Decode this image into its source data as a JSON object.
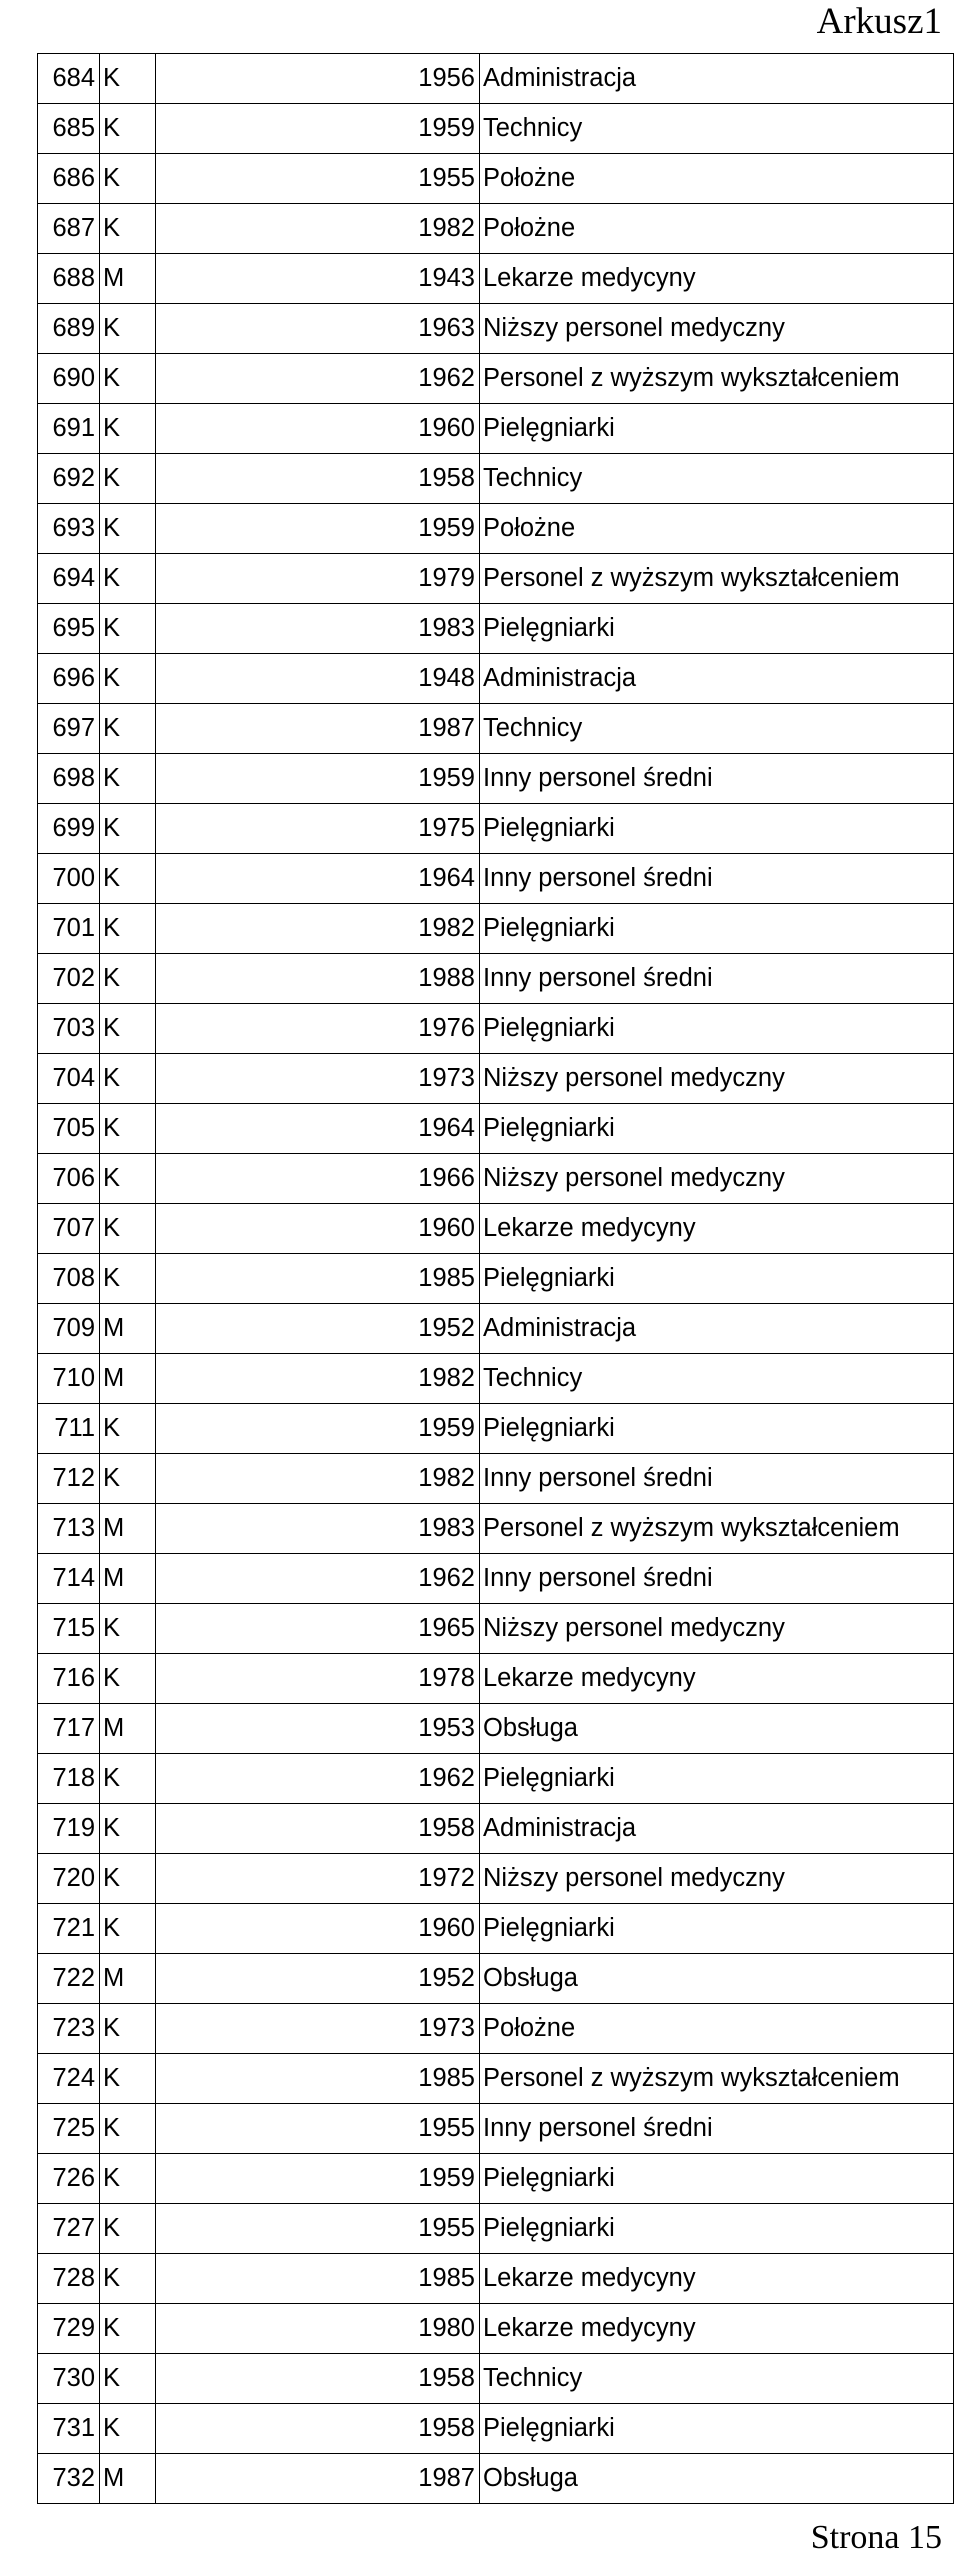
{
  "header": {
    "sheet_name": "Arkusz1"
  },
  "table": {
    "rows": [
      {
        "id": "684",
        "sex": "K",
        "year": "1956",
        "group": "Administracja"
      },
      {
        "id": "685",
        "sex": "K",
        "year": "1959",
        "group": "Technicy"
      },
      {
        "id": "686",
        "sex": "K",
        "year": "1955",
        "group": "Położne"
      },
      {
        "id": "687",
        "sex": "K",
        "year": "1982",
        "group": "Położne"
      },
      {
        "id": "688",
        "sex": "M",
        "year": "1943",
        "group": "Lekarze medycyny"
      },
      {
        "id": "689",
        "sex": "K",
        "year": "1963",
        "group": "Niższy personel medyczny"
      },
      {
        "id": "690",
        "sex": "K",
        "year": "1962",
        "group": "Personel z wyższym wykształceniem"
      },
      {
        "id": "691",
        "sex": "K",
        "year": "1960",
        "group": "Pielęgniarki"
      },
      {
        "id": "692",
        "sex": "K",
        "year": "1958",
        "group": "Technicy"
      },
      {
        "id": "693",
        "sex": "K",
        "year": "1959",
        "group": "Położne"
      },
      {
        "id": "694",
        "sex": "K",
        "year": "1979",
        "group": "Personel z wyższym wykształceniem"
      },
      {
        "id": "695",
        "sex": "K",
        "year": "1983",
        "group": "Pielęgniarki"
      },
      {
        "id": "696",
        "sex": "K",
        "year": "1948",
        "group": "Administracja"
      },
      {
        "id": "697",
        "sex": "K",
        "year": "1987",
        "group": "Technicy"
      },
      {
        "id": "698",
        "sex": "K",
        "year": "1959",
        "group": "Inny personel średni"
      },
      {
        "id": "699",
        "sex": "K",
        "year": "1975",
        "group": "Pielęgniarki"
      },
      {
        "id": "700",
        "sex": "K",
        "year": "1964",
        "group": "Inny personel średni"
      },
      {
        "id": "701",
        "sex": "K",
        "year": "1982",
        "group": "Pielęgniarki"
      },
      {
        "id": "702",
        "sex": "K",
        "year": "1988",
        "group": "Inny personel średni"
      },
      {
        "id": "703",
        "sex": "K",
        "year": "1976",
        "group": "Pielęgniarki"
      },
      {
        "id": "704",
        "sex": "K",
        "year": "1973",
        "group": "Niższy personel medyczny"
      },
      {
        "id": "705",
        "sex": "K",
        "year": "1964",
        "group": "Pielęgniarki"
      },
      {
        "id": "706",
        "sex": "K",
        "year": "1966",
        "group": "Niższy personel medyczny"
      },
      {
        "id": "707",
        "sex": "K",
        "year": "1960",
        "group": "Lekarze medycyny"
      },
      {
        "id": "708",
        "sex": "K",
        "year": "1985",
        "group": "Pielęgniarki"
      },
      {
        "id": "709",
        "sex": "M",
        "year": "1952",
        "group": "Administracja"
      },
      {
        "id": "710",
        "sex": "M",
        "year": "1982",
        "group": "Technicy"
      },
      {
        "id": "711",
        "sex": "K",
        "year": "1959",
        "group": "Pielęgniarki"
      },
      {
        "id": "712",
        "sex": "K",
        "year": "1982",
        "group": "Inny personel średni"
      },
      {
        "id": "713",
        "sex": "M",
        "year": "1983",
        "group": "Personel z wyższym wykształceniem"
      },
      {
        "id": "714",
        "sex": "M",
        "year": "1962",
        "group": "Inny personel średni"
      },
      {
        "id": "715",
        "sex": "K",
        "year": "1965",
        "group": "Niższy personel medyczny"
      },
      {
        "id": "716",
        "sex": "K",
        "year": "1978",
        "group": "Lekarze medycyny"
      },
      {
        "id": "717",
        "sex": "M",
        "year": "1953",
        "group": "Obsługa"
      },
      {
        "id": "718",
        "sex": "K",
        "year": "1962",
        "group": "Pielęgniarki"
      },
      {
        "id": "719",
        "sex": "K",
        "year": "1958",
        "group": "Administracja"
      },
      {
        "id": "720",
        "sex": "K",
        "year": "1972",
        "group": "Niższy personel medyczny"
      },
      {
        "id": "721",
        "sex": "K",
        "year": "1960",
        "group": "Pielęgniarki"
      },
      {
        "id": "722",
        "sex": "M",
        "year": "1952",
        "group": "Obsługa"
      },
      {
        "id": "723",
        "sex": "K",
        "year": "1973",
        "group": "Położne"
      },
      {
        "id": "724",
        "sex": "K",
        "year": "1985",
        "group": "Personel z wyższym wykształceniem"
      },
      {
        "id": "725",
        "sex": "K",
        "year": "1955",
        "group": "Inny personel średni"
      },
      {
        "id": "726",
        "sex": "K",
        "year": "1959",
        "group": "Pielęgniarki"
      },
      {
        "id": "727",
        "sex": "K",
        "year": "1955",
        "group": "Pielęgniarki"
      },
      {
        "id": "728",
        "sex": "K",
        "year": "1985",
        "group": "Lekarze medycyny"
      },
      {
        "id": "729",
        "sex": "K",
        "year": "1980",
        "group": "Lekarze medycyny"
      },
      {
        "id": "730",
        "sex": "K",
        "year": "1958",
        "group": "Technicy"
      },
      {
        "id": "731",
        "sex": "K",
        "year": "1958",
        "group": "Pielęgniarki"
      },
      {
        "id": "732",
        "sex": "M",
        "year": "1987",
        "group": "Obsługa"
      }
    ]
  },
  "footer": {
    "page_label": "Strona 15"
  }
}
